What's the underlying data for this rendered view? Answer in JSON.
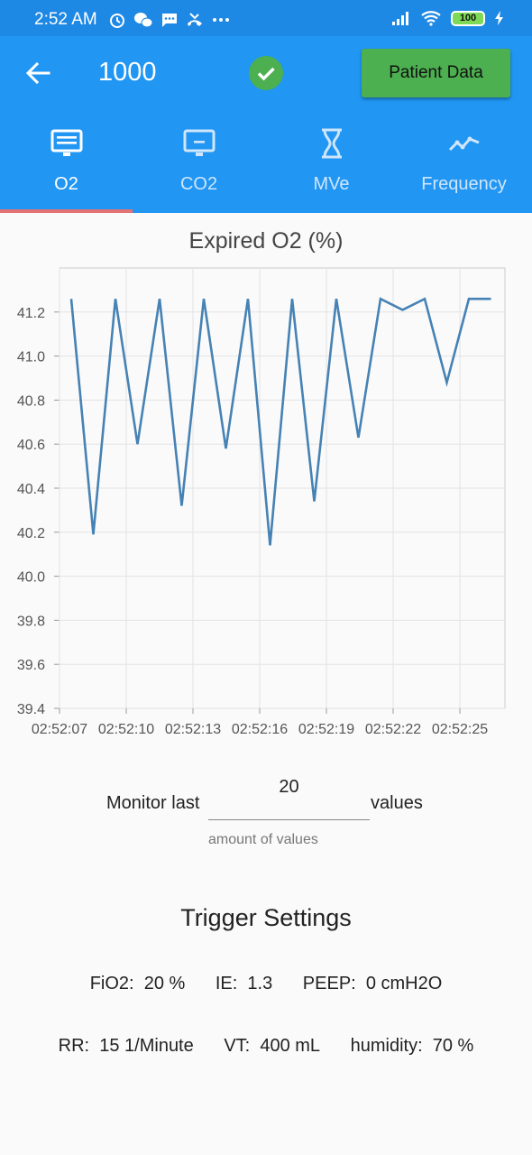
{
  "status_bar": {
    "time": "2:52 AM",
    "battery": "100"
  },
  "app_bar": {
    "title": "1000",
    "patient_button": "Patient Data"
  },
  "tabs": [
    {
      "label": "O2",
      "icon": "monitor-icon",
      "active": true
    },
    {
      "label": "CO2",
      "icon": "display-icon",
      "active": false
    },
    {
      "label": "MVe",
      "icon": "hourglass-icon",
      "active": false
    },
    {
      "label": "Frequency",
      "icon": "line-chart-icon",
      "active": false
    }
  ],
  "chart_data": {
    "type": "line",
    "title": "Expired O2 (%)",
    "x": [
      "02:52:07",
      "02:52:08",
      "02:52:09",
      "02:52:10",
      "02:52:11",
      "02:52:12",
      "02:52:13",
      "02:52:14",
      "02:52:15",
      "02:52:16",
      "02:52:17",
      "02:52:18",
      "02:52:19",
      "02:52:20",
      "02:52:21",
      "02:52:22",
      "02:52:23",
      "02:52:24",
      "02:52:25",
      "02:52:26"
    ],
    "values": [
      41.26,
      40.19,
      41.26,
      40.6,
      41.26,
      40.32,
      41.26,
      40.58,
      41.26,
      40.14,
      41.26,
      40.34,
      41.26,
      40.63,
      41.26,
      41.21,
      41.26,
      40.88,
      41.26,
      41.26
    ],
    "xticks": [
      "02:52:07",
      "02:52:10",
      "02:52:13",
      "02:52:16",
      "02:52:19",
      "02:52:22",
      "02:52:25"
    ],
    "yticks": [
      "39.4",
      "39.6",
      "39.8",
      "40.0",
      "40.2",
      "40.4",
      "40.6",
      "40.8",
      "41.0",
      "41.2"
    ],
    "ylim": [
      39.4,
      41.4
    ],
    "line_color": "#4682b4",
    "grid": true
  },
  "monitor": {
    "prefix": "Monitor last",
    "value": "20",
    "suffix": "values",
    "helper": "amount of values"
  },
  "trigger": {
    "title": "Trigger Settings",
    "row1": [
      "FiO2:  20 %",
      "IE:  1.3",
      "PEEP:  0 cmH2O"
    ],
    "row2": [
      "RR:  15 1/Minute",
      "VT:  400 mL",
      "humidity:  70 %"
    ]
  }
}
